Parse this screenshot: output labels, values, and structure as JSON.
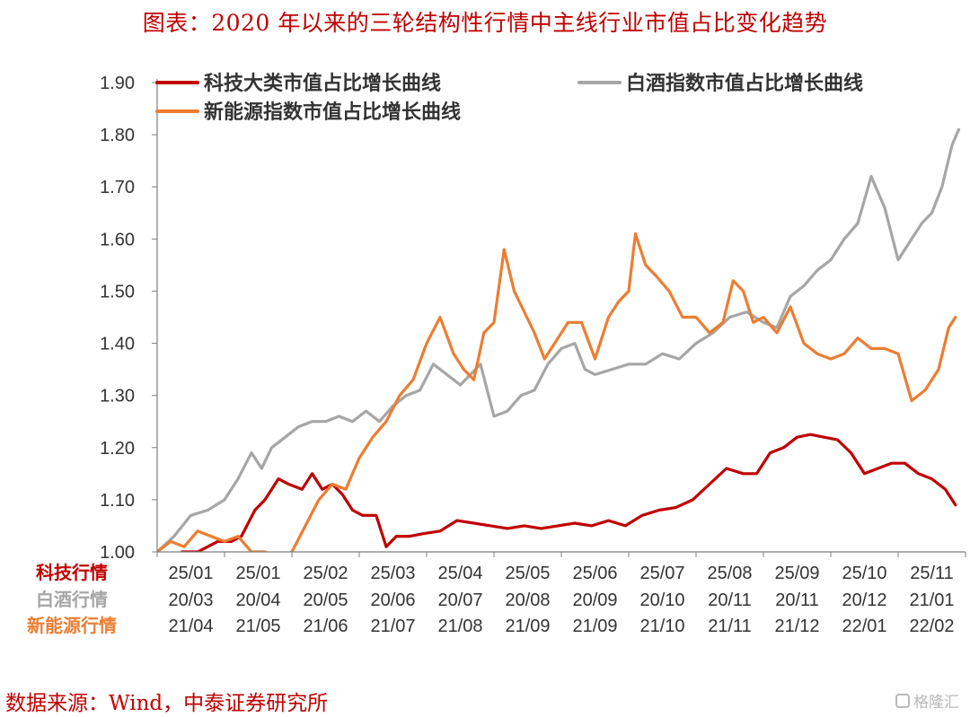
{
  "page": {
    "title": "图表：2020 年以来的三轮结构性行情中主线行业市值占比变化趋势",
    "source": "数据来源：Wind，中泰证券研究所",
    "watermark": "格隆汇"
  },
  "colors": {
    "tech": "#c00000",
    "baijiu": "#a6a6a6",
    "newenergy": "#ed7d31",
    "axis": "#7f7f7f",
    "text": "#333333"
  },
  "chart_data": {
    "type": "line",
    "title": "",
    "xlabel": "",
    "ylabel": "",
    "ylim": [
      1.0,
      1.9
    ],
    "yticks": [
      "1.00",
      "1.10",
      "1.20",
      "1.30",
      "1.40",
      "1.50",
      "1.60",
      "1.70",
      "1.80",
      "1.90"
    ],
    "x_tick_rows": [
      {
        "label": "科技行情",
        "ticks": [
          "25/01",
          "25/01",
          "25/02",
          "25/03",
          "25/04",
          "25/05",
          "25/06",
          "25/07",
          "25/08",
          "25/09",
          "25/10",
          "25/11"
        ]
      },
      {
        "label": "白酒行情",
        "ticks": [
          "20/03",
          "20/04",
          "20/05",
          "20/06",
          "20/07",
          "20/08",
          "20/09",
          "20/10",
          "20/11",
          "20/11",
          "20/12",
          "21/01"
        ]
      },
      {
        "label": "新能源行情",
        "ticks": [
          "21/04",
          "21/05",
          "21/06",
          "21/07",
          "21/08",
          "21/09",
          "21/09",
          "21/10",
          "21/11",
          "21/12",
          "22/01",
          "22/02"
        ]
      }
    ],
    "legend": {
      "placement": "top",
      "entries": [
        "科技大类市值占比增长曲线",
        "白酒指数市值占比增长曲线",
        "新能源指数市值占比增长曲线"
      ]
    },
    "x_range": [
      0,
      12
    ],
    "series": [
      {
        "name": "科技大类市值占比增长曲线",
        "color": "#c00000",
        "x": [
          0.37,
          0.6,
          0.9,
          1.1,
          1.25,
          1.45,
          1.6,
          1.8,
          1.95,
          2.15,
          2.3,
          2.45,
          2.6,
          2.75,
          2.9,
          3.05,
          3.25,
          3.4,
          3.55,
          3.75,
          3.95,
          4.2,
          4.45,
          4.7,
          4.95,
          5.2,
          5.45,
          5.7,
          5.95,
          6.2,
          6.45,
          6.7,
          6.95,
          7.2,
          7.45,
          7.7,
          7.95,
          8.2,
          8.45,
          8.7,
          8.9,
          9.1,
          9.3,
          9.5,
          9.7,
          9.9,
          10.1,
          10.3,
          10.5,
          10.7,
          10.9,
          11.1,
          11.3,
          11.5,
          11.7,
          11.85
        ],
        "y": [
          1.0,
          1.0,
          1.02,
          1.02,
          1.03,
          1.08,
          1.1,
          1.14,
          1.13,
          1.12,
          1.15,
          1.12,
          1.13,
          1.11,
          1.08,
          1.07,
          1.07,
          1.01,
          1.03,
          1.03,
          1.035,
          1.04,
          1.06,
          1.055,
          1.05,
          1.045,
          1.05,
          1.045,
          1.05,
          1.055,
          1.05,
          1.06,
          1.05,
          1.07,
          1.08,
          1.085,
          1.1,
          1.13,
          1.16,
          1.15,
          1.15,
          1.19,
          1.2,
          1.22,
          1.225,
          1.22,
          1.215,
          1.19,
          1.15,
          1.16,
          1.17,
          1.17,
          1.15,
          1.14,
          1.12,
          1.09
        ]
      },
      {
        "name": "白酒指数市值占比增长曲线",
        "color": "#a6a6a6",
        "x": [
          0.0,
          0.25,
          0.5,
          0.75,
          1.0,
          1.2,
          1.4,
          1.55,
          1.7,
          1.9,
          2.1,
          2.3,
          2.5,
          2.7,
          2.9,
          3.1,
          3.3,
          3.5,
          3.7,
          3.9,
          4.1,
          4.3,
          4.5,
          4.65,
          4.8,
          5.0,
          5.2,
          5.4,
          5.6,
          5.8,
          6.0,
          6.2,
          6.35,
          6.5,
          6.75,
          7.0,
          7.25,
          7.5,
          7.75,
          8.0,
          8.25,
          8.5,
          8.75,
          9.0,
          9.2,
          9.4,
          9.6,
          9.8,
          10.0,
          10.2,
          10.4,
          10.6,
          10.8,
          11.0,
          11.2,
          11.35,
          11.5,
          11.65,
          11.8,
          11.9
        ],
        "y": [
          1.0,
          1.03,
          1.07,
          1.08,
          1.1,
          1.14,
          1.19,
          1.16,
          1.2,
          1.22,
          1.24,
          1.25,
          1.25,
          1.26,
          1.25,
          1.27,
          1.25,
          1.28,
          1.3,
          1.31,
          1.36,
          1.34,
          1.32,
          1.34,
          1.36,
          1.26,
          1.27,
          1.3,
          1.31,
          1.36,
          1.39,
          1.4,
          1.35,
          1.34,
          1.35,
          1.36,
          1.36,
          1.38,
          1.37,
          1.4,
          1.42,
          1.45,
          1.46,
          1.44,
          1.43,
          1.49,
          1.51,
          1.54,
          1.56,
          1.6,
          1.63,
          1.72,
          1.66,
          1.56,
          1.6,
          1.63,
          1.65,
          1.7,
          1.78,
          1.81
        ]
      },
      {
        "name": "新能源指数市值占比增长曲线",
        "color": "#ed7d31",
        "x": [
          0.0,
          0.2,
          0.4,
          0.6,
          0.8,
          1.0,
          1.2,
          1.4,
          1.6,
          1.8,
          2.0,
          2.2,
          2.4,
          2.6,
          2.8,
          3.0,
          3.2,
          3.4,
          3.6,
          3.8,
          4.0,
          4.2,
          4.4,
          4.55,
          4.7,
          4.85,
          5.0,
          5.15,
          5.3,
          5.45,
          5.6,
          5.75,
          5.9,
          6.1,
          6.3,
          6.5,
          6.7,
          6.85,
          7.0,
          7.1,
          7.25,
          7.4,
          7.6,
          7.8,
          8.0,
          8.2,
          8.4,
          8.55,
          8.7,
          8.85,
          9.0,
          9.2,
          9.4,
          9.6,
          9.8,
          10.0,
          10.2,
          10.4,
          10.6,
          10.8,
          11.0,
          11.2,
          11.4,
          11.6,
          11.75,
          11.85
        ],
        "y": [
          1.0,
          1.02,
          1.01,
          1.04,
          1.03,
          1.02,
          1.03,
          1.0,
          1.0,
          0.99,
          1.0,
          1.05,
          1.1,
          1.13,
          1.12,
          1.18,
          1.22,
          1.25,
          1.3,
          1.33,
          1.4,
          1.45,
          1.38,
          1.35,
          1.33,
          1.42,
          1.44,
          1.58,
          1.5,
          1.46,
          1.42,
          1.37,
          1.4,
          1.44,
          1.44,
          1.37,
          1.45,
          1.48,
          1.5,
          1.61,
          1.55,
          1.53,
          1.5,
          1.45,
          1.45,
          1.42,
          1.44,
          1.52,
          1.5,
          1.44,
          1.45,
          1.42,
          1.47,
          1.4,
          1.38,
          1.37,
          1.38,
          1.41,
          1.39,
          1.39,
          1.38,
          1.29,
          1.31,
          1.35,
          1.43,
          1.45
        ]
      }
    ]
  }
}
